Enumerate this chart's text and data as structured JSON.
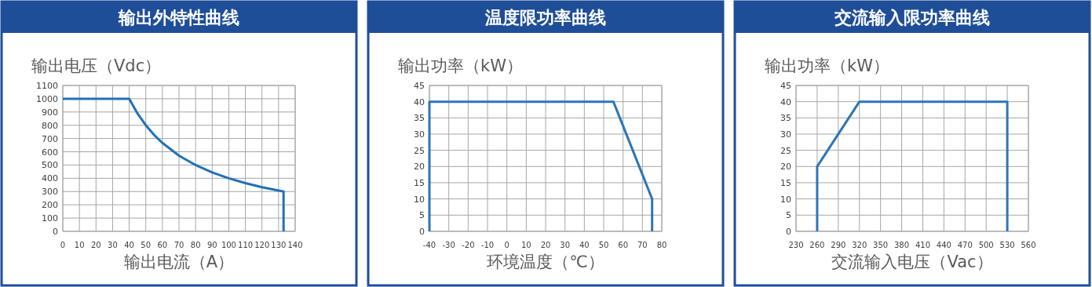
{
  "chart_data": [
    {
      "type": "line",
      "title": "输出外特性曲线",
      "xlabel": "输出电流（A）",
      "ylabel": "输出电压（Vdc）",
      "series": [
        {
          "color": "#2171b5",
          "x": [
            0,
            40,
            45,
            50,
            55,
            60,
            70,
            80,
            90,
            100,
            110,
            120,
            133,
            133
          ],
          "values": [
            1000,
            1000,
            889,
            800,
            727,
            667,
            571,
            500,
            444,
            400,
            364,
            333,
            300,
            0
          ]
        }
      ],
      "xlim": [
        0,
        140
      ],
      "xticks": [
        0,
        10,
        20,
        30,
        40,
        50,
        60,
        70,
        80,
        90,
        100,
        110,
        120,
        130,
        140
      ],
      "ylim": [
        0,
        1100
      ],
      "yticks": [
        0,
        100,
        200,
        300,
        400,
        500,
        600,
        700,
        800,
        900,
        1000,
        1100
      ],
      "grid": true,
      "marker": "none",
      "line_style": "solid"
    },
    {
      "type": "line",
      "title": "温度限功率曲线",
      "xlabel": "环境温度（℃）",
      "ylabel": "输出功率（kW）",
      "series": [
        {
          "color": "#2e75b6",
          "x": [
            -40,
            -40,
            55,
            75,
            75
          ],
          "values": [
            0,
            40,
            40,
            10,
            0
          ]
        }
      ],
      "xlim": [
        -40,
        80
      ],
      "xticks": [
        -40,
        -30,
        -20,
        -10,
        0,
        10,
        20,
        30,
        40,
        50,
        60,
        70,
        80
      ],
      "ylim": [
        0,
        45
      ],
      "yticks": [
        0,
        5,
        10,
        15,
        20,
        25,
        30,
        35,
        40,
        45
      ],
      "grid": true,
      "marker": "none",
      "line_style": "solid"
    },
    {
      "type": "line",
      "title": "交流输入限功率曲线",
      "xlabel": "交流输入电压（Vac）",
      "ylabel": "输出功率（kW）",
      "series": [
        {
          "color": "#2e75b6",
          "x": [
            260,
            260,
            320,
            530,
            530
          ],
          "values": [
            0,
            20,
            40,
            40,
            0
          ]
        }
      ],
      "xlim": [
        230,
        560
      ],
      "xticks": [
        230,
        260,
        290,
        320,
        350,
        380,
        410,
        440,
        470,
        500,
        530,
        560
      ],
      "ylim": [
        0,
        45
      ],
      "yticks": [
        0,
        5,
        10,
        15,
        20,
        25,
        30,
        35,
        40,
        45
      ],
      "grid": true,
      "marker": "none",
      "line_style": "solid"
    }
  ]
}
